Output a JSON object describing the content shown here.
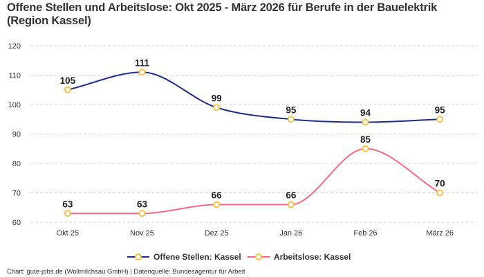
{
  "chart_data": {
    "type": "line",
    "title": "Offene Stellen und Arbeitslose: Okt 2025 - März 2026 für Berufe in der Bauelektrik (Region Kassel)",
    "categories": [
      "Okt 25",
      "Nov 25",
      "Dez 25",
      "Jan 26",
      "Feb 26",
      "März 26"
    ],
    "series": [
      {
        "name": "Offene Stellen: Kassel",
        "color": "#1f2d8c",
        "values": [
          105,
          111,
          99,
          95,
          94,
          95
        ]
      },
      {
        "name": "Arbeitslose: Kassel",
        "color": "#f7677f",
        "values": [
          63,
          63,
          66,
          66,
          85,
          70
        ]
      }
    ],
    "marker_color": "#f5c242",
    "ylim": [
      60,
      120
    ],
    "yticks": [
      60,
      70,
      80,
      90,
      100,
      110,
      120
    ],
    "grid": true,
    "legend_position": "bottom",
    "xlabel": "",
    "ylabel": ""
  },
  "footer": "Chart: gute-jobs.de (Wollmilchsau GmbH) | Datenquelle: Bundesagentur für Arbeit"
}
